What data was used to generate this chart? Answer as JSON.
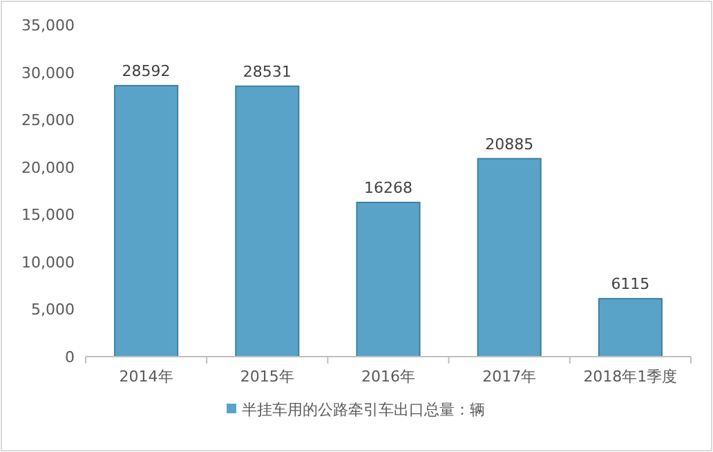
{
  "chart_data": {
    "type": "bar",
    "categories": [
      "2014年",
      "2015年",
      "2016年",
      "2017年",
      "2018年1季度"
    ],
    "series": [
      {
        "name": "半挂车用的公路牵引车出口总量：辆",
        "color": "#5aa3c8",
        "values": [
          28592,
          28531,
          16268,
          20885,
          6115
        ]
      }
    ],
    "ylim": [
      0,
      35000
    ],
    "yticks": [
      {
        "value": 0,
        "label": "0"
      },
      {
        "value": 5000,
        "label": "5,000"
      },
      {
        "value": 10000,
        "label": "10,000"
      },
      {
        "value": 15000,
        "label": "15,000"
      },
      {
        "value": 20000,
        "label": "20,000"
      },
      {
        "value": 25000,
        "label": "25,000"
      },
      {
        "value": 30000,
        "label": "30,000"
      },
      {
        "value": 35000,
        "label": "35,000"
      }
    ],
    "data_labels": true,
    "legend": "bottom"
  }
}
